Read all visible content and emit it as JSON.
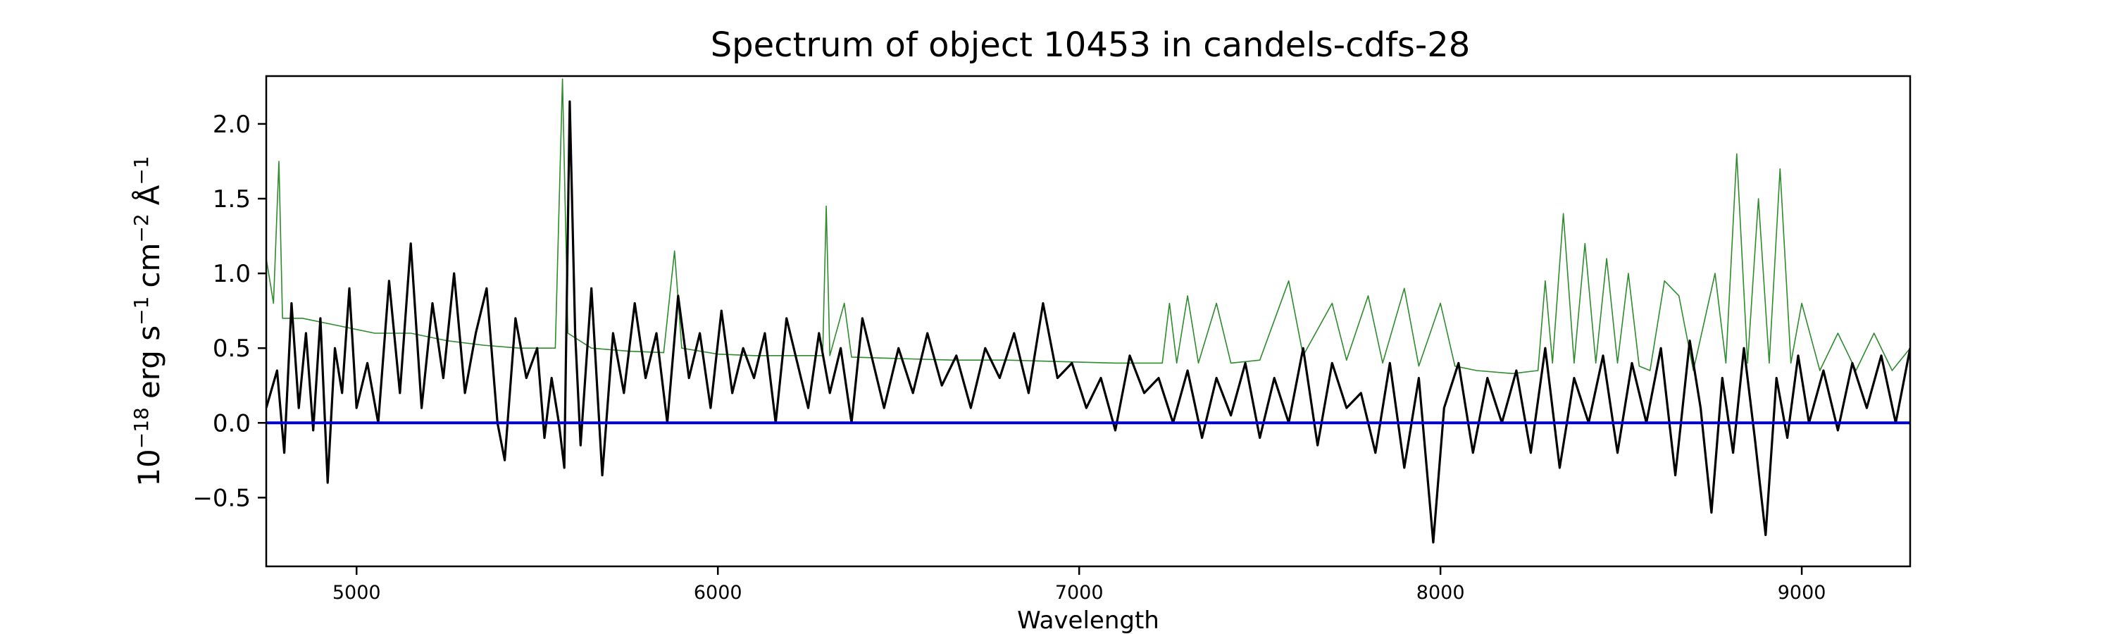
{
  "chart_data": {
    "type": "line",
    "title": "Spectrum of object 10453 in candels-cdfs-28",
    "xlabel": "Wavelength",
    "ylabel_parts": {
      "base": "10",
      "exp": "−18",
      "unit": "erg s",
      "s_exp": "−1",
      "cm": "cm",
      "cm_exp": "−2",
      "ang": "Å",
      "ang_exp": "−1"
    },
    "xlim": [
      4750,
      9300
    ],
    "ylim": [
      -0.96,
      2.32
    ],
    "xticks": [
      5000,
      6000,
      7000,
      8000,
      9000
    ],
    "xtick_labels": [
      "5000",
      "6000",
      "7000",
      "8000",
      "9000"
    ],
    "yticks": [
      -0.5,
      0.0,
      0.5,
      1.0,
      1.5,
      2.0
    ],
    "ytick_labels": [
      "−0.5",
      "0.0",
      "0.5",
      "1.0",
      "1.5",
      "2.0"
    ],
    "grid": false,
    "series": [
      {
        "role": "flux",
        "color": "#000000",
        "points": [
          [
            4750,
            0.1
          ],
          [
            4780,
            0.35
          ],
          [
            4800,
            -0.2
          ],
          [
            4820,
            0.8
          ],
          [
            4840,
            0.1
          ],
          [
            4860,
            0.6
          ],
          [
            4880,
            -0.05
          ],
          [
            4900,
            0.7
          ],
          [
            4920,
            -0.4
          ],
          [
            4940,
            0.5
          ],
          [
            4960,
            0.2
          ],
          [
            4980,
            0.9
          ],
          [
            5000,
            0.1
          ],
          [
            5030,
            0.4
          ],
          [
            5060,
            0.0
          ],
          [
            5090,
            0.95
          ],
          [
            5120,
            0.2
          ],
          [
            5150,
            1.2
          ],
          [
            5180,
            0.1
          ],
          [
            5210,
            0.8
          ],
          [
            5240,
            0.3
          ],
          [
            5270,
            1.0
          ],
          [
            5300,
            0.2
          ],
          [
            5330,
            0.6
          ],
          [
            5360,
            0.9
          ],
          [
            5390,
            0.0
          ],
          [
            5410,
            -0.25
          ],
          [
            5440,
            0.7
          ],
          [
            5470,
            0.3
          ],
          [
            5500,
            0.5
          ],
          [
            5520,
            -0.1
          ],
          [
            5540,
            0.3
          ],
          [
            5560,
            0.0
          ],
          [
            5575,
            -0.3
          ],
          [
            5590,
            2.15
          ],
          [
            5605,
            0.6
          ],
          [
            5620,
            -0.15
          ],
          [
            5650,
            0.9
          ],
          [
            5680,
            -0.35
          ],
          [
            5710,
            0.6
          ],
          [
            5740,
            0.2
          ],
          [
            5770,
            0.8
          ],
          [
            5800,
            0.3
          ],
          [
            5830,
            0.6
          ],
          [
            5860,
            0.0
          ],
          [
            5890,
            0.85
          ],
          [
            5920,
            0.3
          ],
          [
            5950,
            0.6
          ],
          [
            5980,
            0.1
          ],
          [
            6010,
            0.75
          ],
          [
            6040,
            0.2
          ],
          [
            6070,
            0.5
          ],
          [
            6100,
            0.3
          ],
          [
            6130,
            0.6
          ],
          [
            6160,
            0.0
          ],
          [
            6190,
            0.7
          ],
          [
            6220,
            0.4
          ],
          [
            6250,
            0.1
          ],
          [
            6280,
            0.6
          ],
          [
            6310,
            0.2
          ],
          [
            6340,
            0.5
          ],
          [
            6370,
            0.0
          ],
          [
            6400,
            0.7
          ],
          [
            6430,
            0.4
          ],
          [
            6460,
            0.1
          ],
          [
            6500,
            0.5
          ],
          [
            6540,
            0.2
          ],
          [
            6580,
            0.6
          ],
          [
            6620,
            0.25
          ],
          [
            6660,
            0.45
          ],
          [
            6700,
            0.1
          ],
          [
            6740,
            0.5
          ],
          [
            6780,
            0.3
          ],
          [
            6820,
            0.6
          ],
          [
            6860,
            0.2
          ],
          [
            6900,
            0.8
          ],
          [
            6940,
            0.3
          ],
          [
            6980,
            0.4
          ],
          [
            7020,
            0.1
          ],
          [
            7060,
            0.3
          ],
          [
            7100,
            -0.05
          ],
          [
            7140,
            0.45
          ],
          [
            7180,
            0.2
          ],
          [
            7220,
            0.3
          ],
          [
            7260,
            0.0
          ],
          [
            7300,
            0.35
          ],
          [
            7340,
            -0.1
          ],
          [
            7380,
            0.3
          ],
          [
            7420,
            0.05
          ],
          [
            7460,
            0.4
          ],
          [
            7500,
            -0.1
          ],
          [
            7540,
            0.3
          ],
          [
            7580,
            0.0
          ],
          [
            7620,
            0.5
          ],
          [
            7660,
            -0.15
          ],
          [
            7700,
            0.4
          ],
          [
            7740,
            0.1
          ],
          [
            7780,
            0.2
          ],
          [
            7820,
            -0.2
          ],
          [
            7860,
            0.4
          ],
          [
            7900,
            -0.3
          ],
          [
            7940,
            0.3
          ],
          [
            7980,
            -0.8
          ],
          [
            8010,
            0.1
          ],
          [
            8050,
            0.4
          ],
          [
            8090,
            -0.2
          ],
          [
            8130,
            0.3
          ],
          [
            8170,
            0.0
          ],
          [
            8210,
            0.35
          ],
          [
            8250,
            -0.2
          ],
          [
            8290,
            0.5
          ],
          [
            8330,
            -0.3
          ],
          [
            8370,
            0.3
          ],
          [
            8410,
            0.0
          ],
          [
            8450,
            0.45
          ],
          [
            8490,
            -0.2
          ],
          [
            8530,
            0.4
          ],
          [
            8570,
            0.0
          ],
          [
            8610,
            0.5
          ],
          [
            8650,
            -0.35
          ],
          [
            8690,
            0.55
          ],
          [
            8720,
            0.1
          ],
          [
            8750,
            -0.6
          ],
          [
            8780,
            0.3
          ],
          [
            8810,
            -0.2
          ],
          [
            8840,
            0.5
          ],
          [
            8870,
            -0.1
          ],
          [
            8900,
            -0.75
          ],
          [
            8930,
            0.3
          ],
          [
            8960,
            -0.1
          ],
          [
            8990,
            0.45
          ],
          [
            9020,
            0.0
          ],
          [
            9060,
            0.35
          ],
          [
            9100,
            -0.05
          ],
          [
            9140,
            0.4
          ],
          [
            9180,
            0.1
          ],
          [
            9220,
            0.45
          ],
          [
            9260,
            0.0
          ],
          [
            9300,
            0.5
          ]
        ]
      },
      {
        "role": "error",
        "color": "#2e8b2e",
        "points": [
          [
            4750,
            1.1
          ],
          [
            4770,
            0.8
          ],
          [
            4785,
            1.75
          ],
          [
            4795,
            0.7
          ],
          [
            4850,
            0.7
          ],
          [
            4950,
            0.65
          ],
          [
            5050,
            0.6
          ],
          [
            5150,
            0.6
          ],
          [
            5250,
            0.55
          ],
          [
            5350,
            0.52
          ],
          [
            5450,
            0.5
          ],
          [
            5550,
            0.5
          ],
          [
            5570,
            2.3
          ],
          [
            5585,
            0.6
          ],
          [
            5650,
            0.5
          ],
          [
            5750,
            0.48
          ],
          [
            5850,
            0.47
          ],
          [
            5880,
            1.15
          ],
          [
            5900,
            0.5
          ],
          [
            6000,
            0.46
          ],
          [
            6100,
            0.45
          ],
          [
            6200,
            0.45
          ],
          [
            6290,
            0.45
          ],
          [
            6300,
            1.45
          ],
          [
            6310,
            0.45
          ],
          [
            6350,
            0.8
          ],
          [
            6370,
            0.44
          ],
          [
            6500,
            0.43
          ],
          [
            6650,
            0.42
          ],
          [
            6800,
            0.42
          ],
          [
            6950,
            0.41
          ],
          [
            7100,
            0.4
          ],
          [
            7230,
            0.4
          ],
          [
            7250,
            0.8
          ],
          [
            7270,
            0.4
          ],
          [
            7300,
            0.85
          ],
          [
            7330,
            0.4
          ],
          [
            7380,
            0.8
          ],
          [
            7420,
            0.4
          ],
          [
            7500,
            0.42
          ],
          [
            7580,
            0.95
          ],
          [
            7620,
            0.45
          ],
          [
            7700,
            0.8
          ],
          [
            7740,
            0.42
          ],
          [
            7800,
            0.85
          ],
          [
            7840,
            0.4
          ],
          [
            7900,
            0.9
          ],
          [
            7940,
            0.38
          ],
          [
            8000,
            0.8
          ],
          [
            8040,
            0.38
          ],
          [
            8100,
            0.35
          ],
          [
            8200,
            0.33
          ],
          [
            8270,
            0.35
          ],
          [
            8290,
            0.95
          ],
          [
            8310,
            0.4
          ],
          [
            8340,
            1.4
          ],
          [
            8370,
            0.4
          ],
          [
            8400,
            1.2
          ],
          [
            8430,
            0.4
          ],
          [
            8460,
            1.1
          ],
          [
            8490,
            0.4
          ],
          [
            8520,
            1.0
          ],
          [
            8550,
            0.38
          ],
          [
            8580,
            0.35
          ],
          [
            8620,
            0.95
          ],
          [
            8660,
            0.85
          ],
          [
            8700,
            0.35
          ],
          [
            8760,
            1.0
          ],
          [
            8790,
            0.4
          ],
          [
            8820,
            1.8
          ],
          [
            8850,
            0.4
          ],
          [
            8880,
            1.5
          ],
          [
            8910,
            0.4
          ],
          [
            8940,
            1.7
          ],
          [
            8970,
            0.4
          ],
          [
            9000,
            0.8
          ],
          [
            9050,
            0.35
          ],
          [
            9100,
            0.6
          ],
          [
            9150,
            0.35
          ],
          [
            9200,
            0.6
          ],
          [
            9250,
            0.35
          ],
          [
            9300,
            0.5
          ]
        ]
      },
      {
        "role": "zero",
        "color": "#0000cc",
        "points": [
          [
            4750,
            0.0
          ],
          [
            9300,
            0.0
          ]
        ]
      }
    ]
  }
}
